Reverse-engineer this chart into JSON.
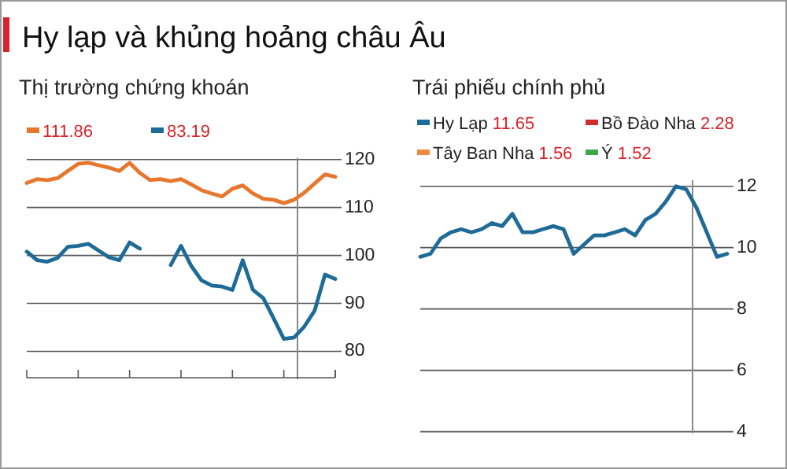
{
  "chart_data": [
    {
      "type": "line",
      "title": "Hy lạp và khủng hoảng châu Âu",
      "subtitle": "Thị trường chứng khoán",
      "categories": [
        null,
        null,
        null,
        null,
        null,
        null,
        null,
        null,
        null,
        null,
        null,
        null,
        null,
        null,
        null,
        null,
        null,
        null,
        null,
        null,
        null,
        null,
        null,
        null,
        null,
        null,
        null,
        null,
        null,
        null,
        null
      ],
      "ylim": [
        74.5,
        121
      ],
      "yticks": [
        80,
        90,
        100,
        110,
        120
      ],
      "grid": "y",
      "annotations": [
        "111.86",
        "83.19"
      ],
      "series": [
        {
          "color": "#e8772e",
          "values": [
            115.1,
            115.9,
            115.7,
            116.1,
            117.6,
            119.1,
            119.3,
            118.8,
            118.3,
            117.6,
            119.3,
            117.2,
            115.7,
            115.9,
            115.5,
            115.9,
            114.8,
            113.6,
            112.9,
            112.3,
            113.9,
            114.6,
            112.9,
            111.8,
            111.6,
            110.9,
            111.6,
            113.1,
            115,
            116.9,
            116.4
          ]
        },
        {
          "color": "#1f6b98",
          "values": [
            100.8,
            99,
            98.7,
            99.5,
            101.8,
            102,
            102.4,
            101,
            99.6,
            99,
            102.7,
            101.4,
            null,
            null,
            98,
            102,
            97.8,
            94.8,
            93.7,
            93.5,
            92.8,
            99,
            92.8,
            91.1,
            86.9,
            82.6,
            82.9,
            85.2,
            88.5,
            96,
            95.1
          ]
        }
      ]
    },
    {
      "type": "line",
      "subtitle": "Trái phiếu chính phủ",
      "categories": [
        null,
        null,
        null,
        null,
        null,
        null,
        null,
        null,
        null,
        null,
        null,
        null,
        null,
        null,
        null,
        null,
        null,
        null,
        null,
        null,
        null,
        null,
        null,
        null,
        null,
        null,
        null,
        null,
        null,
        null,
        null
      ],
      "ylim": [
        4,
        12.3
      ],
      "yticks": [
        4,
        6,
        8,
        10,
        12
      ],
      "grid": "y",
      "legend": "top",
      "annotations": [
        "11.65",
        "2.28",
        "1.56",
        "1.52"
      ],
      "series": [
        {
          "name": "Hy Lạp",
          "color": "#1f6b98",
          "values": [
            9.7,
            9.8,
            10.3,
            10.5,
            10.6,
            10.5,
            10.6,
            10.8,
            10.7,
            11.1,
            10.5,
            10.5,
            10.6,
            10.7,
            10.6,
            9.8,
            10.1,
            10.4,
            10.4,
            10.5,
            10.6,
            10.4,
            10.9,
            11.1,
            11.5,
            12,
            11.9,
            11.3,
            10.5,
            9.7,
            9.8
          ]
        },
        {
          "name": "Bồ Đào Nha",
          "color": "#d62b2b",
          "values": [
            null,
            null,
            null,
            null,
            null,
            null,
            null,
            null,
            null,
            null,
            null,
            null,
            null,
            null,
            null,
            null,
            null,
            null,
            null,
            null,
            null,
            null,
            null,
            null,
            null,
            null,
            null,
            null,
            null,
            null,
            null
          ]
        },
        {
          "name": "Tây Ban Nha",
          "color": "#f08a3c",
          "values": [
            null,
            null,
            null,
            null,
            null,
            null,
            null,
            null,
            null,
            null,
            null,
            null,
            null,
            null,
            null,
            null,
            null,
            null,
            null,
            null,
            null,
            null,
            null,
            null,
            null,
            null,
            null,
            null,
            null,
            null,
            null
          ]
        },
        {
          "name": "Ý",
          "color": "#3aa84a",
          "values": [
            null,
            null,
            null,
            null,
            null,
            null,
            null,
            null,
            null,
            null,
            null,
            null,
            null,
            null,
            null,
            null,
            null,
            null,
            null,
            null,
            null,
            null,
            null,
            null,
            null,
            null,
            null,
            null,
            null,
            null,
            null
          ]
        }
      ]
    }
  ]
}
